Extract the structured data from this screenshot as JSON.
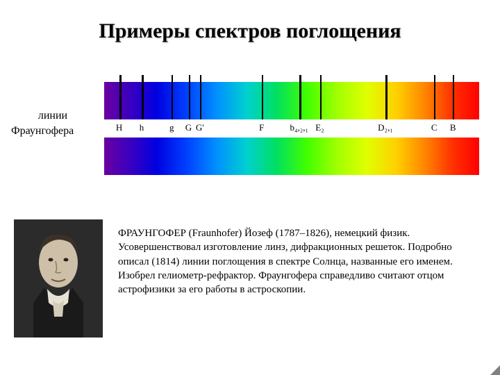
{
  "title": "Примеры спектров поглощения",
  "side_label_line1": "линии",
  "side_label_line2": "Фраунгофера",
  "spectrum": {
    "gradient": "linear-gradient(to right, #6a00a0 0%, #3a00c0 7%, #0000e0 14%, #0040ff 22%, #0090ff 30%, #00d0d0 38%, #00e060 46%, #40ff00 54%, #a0ff00 62%, #e0ff00 70%, #ffd000 78%, #ff8000 86%, #ff3000 93%, #ff0000 100%)",
    "band_height": 54,
    "band_width": 540,
    "lines": [
      {
        "label": "H",
        "pos_pct": 4.0,
        "width": 3
      },
      {
        "label": "h",
        "pos_pct": 10.0,
        "width": 3
      },
      {
        "label": "g",
        "pos_pct": 18.0,
        "width": 2
      },
      {
        "label": "G",
        "pos_pct": 22.5,
        "width": 2
      },
      {
        "label": "G'",
        "pos_pct": 25.5,
        "width": 2
      },
      {
        "label": "F",
        "pos_pct": 42.0,
        "width": 2
      },
      {
        "label": "b₄,₂,₁",
        "pos_pct": 52.0,
        "width": 3
      },
      {
        "label": "E₂",
        "pos_pct": 57.5,
        "width": 2
      },
      {
        "label": "D₂,₁",
        "pos_pct": 75.0,
        "width": 3
      },
      {
        "label": "C",
        "pos_pct": 88.0,
        "width": 2
      },
      {
        "label": "B",
        "pos_pct": 93.0,
        "width": 2
      }
    ]
  },
  "bio_text": "ФРАУНГОФЕР (Fraunhofer) Йозеф (1787–1826), немецкий физик. Усовершенствовал изготовление линз, дифракционных решеток. Подробно описал (1814) линии поглощения в спектре Солнца, названные его именем. Изобрел гелиометр-рефрактор. Фраунгофера справедливо считают отцом астрофизики за его работы в астроскопии.",
  "portrait": {
    "bg": "#2b2b2b",
    "face": "#cdbfa8",
    "shadow": "#3a3128",
    "collar": "#e8e2d4",
    "coat": "#1a1a1a"
  }
}
